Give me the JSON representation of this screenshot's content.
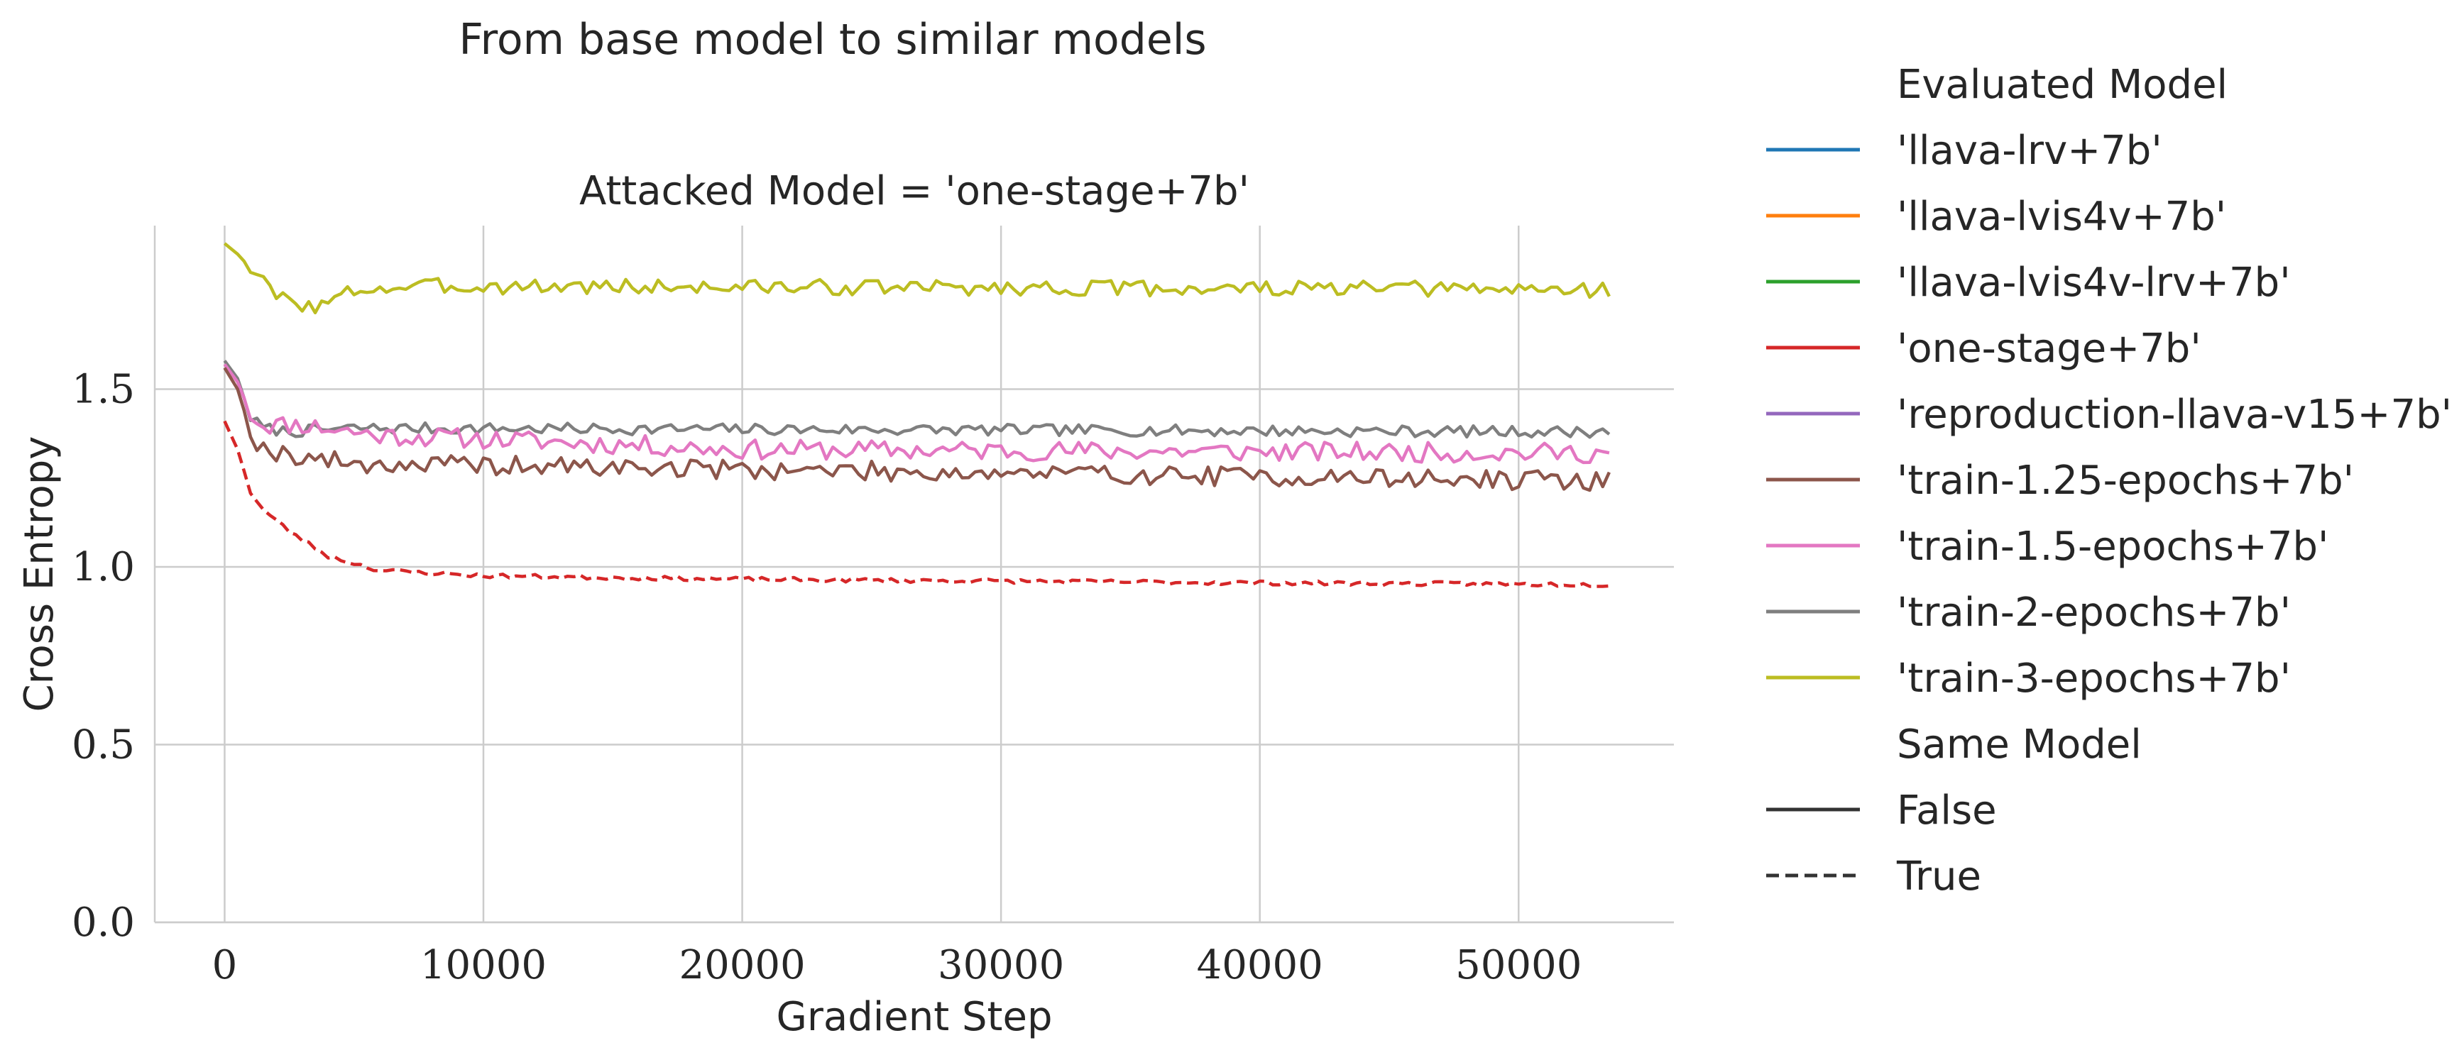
{
  "chart_data": {
    "type": "line",
    "suptitle": "From base model to similar models",
    "title": "Attacked Model = 'one-stage+7b'",
    "xlabel": "Gradient Step",
    "ylabel": "Cross Entropy",
    "xlim": [
      -2700,
      56000
    ],
    "ylim": [
      0,
      1.96
    ],
    "xticks": [
      0,
      10000,
      20000,
      30000,
      40000,
      50000
    ],
    "xtick_labels": [
      "0",
      "10000",
      "20000",
      "30000",
      "40000",
      "50000"
    ],
    "yticks": [
      0.0,
      0.5,
      1.0,
      1.5
    ],
    "ytick_labels": [
      "0.0",
      "0.5",
      "1.0",
      "1.5"
    ],
    "grid": true,
    "legend": {
      "placement": "right-outside",
      "hue_title": "Evaluated Model",
      "style_title": "Same Model",
      "hue_entries": [
        {
          "label": "'llava-lrv+7b'",
          "color": "#1f77b4"
        },
        {
          "label": "'llava-lvis4v+7b'",
          "color": "#ff7f0e"
        },
        {
          "label": "'llava-lvis4v-lrv+7b'",
          "color": "#2ca02c"
        },
        {
          "label": "'one-stage+7b'",
          "color": "#d62728"
        },
        {
          "label": "'reproduction-llava-v15+7b'",
          "color": "#9467bd"
        },
        {
          "label": "'train-1.25-epochs+7b'",
          "color": "#8c564b"
        },
        {
          "label": "'train-1.5-epochs+7b'",
          "color": "#e377c2"
        },
        {
          "label": "'train-2-epochs+7b'",
          "color": "#7f7f7f"
        },
        {
          "label": "'train-3-epochs+7b'",
          "color": "#bcbd22"
        }
      ],
      "style_entries": [
        {
          "label": "False",
          "dash": "solid"
        },
        {
          "label": "True",
          "dash": "dashed"
        }
      ]
    },
    "x_range": {
      "start": 0,
      "end": 53600,
      "step": 250
    },
    "series": [
      {
        "color": "#bcbd22",
        "same_model": false,
        "profile": [
          [
            0,
            1.91
          ],
          [
            500,
            1.88
          ],
          [
            1500,
            1.8
          ],
          [
            2000,
            1.76
          ],
          [
            2500,
            1.75
          ],
          [
            3500,
            1.73
          ],
          [
            4000,
            1.74
          ],
          [
            5000,
            1.78
          ],
          [
            8000,
            1.79
          ],
          [
            53600,
            1.78
          ]
        ],
        "noise": 0.022,
        "seed": 3
      },
      {
        "color": "#7f7f7f",
        "same_model": false,
        "profile": [
          [
            0,
            1.58
          ],
          [
            500,
            1.53
          ],
          [
            1000,
            1.42
          ],
          [
            1500,
            1.39
          ],
          [
            2500,
            1.38
          ],
          [
            5000,
            1.39
          ],
          [
            53600,
            1.38
          ]
        ],
        "noise": 0.016,
        "seed": 7
      },
      {
        "color": "#e377c2",
        "same_model": false,
        "profile": [
          [
            0,
            1.57
          ],
          [
            500,
            1.52
          ],
          [
            1000,
            1.43
          ],
          [
            1500,
            1.4
          ],
          [
            3000,
            1.4
          ],
          [
            6000,
            1.37
          ],
          [
            10000,
            1.36
          ],
          [
            20000,
            1.33
          ],
          [
            53600,
            1.32
          ]
        ],
        "noise": 0.028,
        "seed": 11
      },
      {
        "color": "#8c564b",
        "same_model": false,
        "profile": [
          [
            0,
            1.56
          ],
          [
            500,
            1.5
          ],
          [
            1000,
            1.38
          ],
          [
            1500,
            1.33
          ],
          [
            3000,
            1.31
          ],
          [
            5000,
            1.29
          ],
          [
            53600,
            1.24
          ]
        ],
        "noise": 0.028,
        "seed": 19
      },
      {
        "color": "#d62728",
        "same_model": true,
        "profile": [
          [
            0,
            1.41
          ],
          [
            500,
            1.33
          ],
          [
            1000,
            1.21
          ],
          [
            1500,
            1.16
          ],
          [
            2500,
            1.1
          ],
          [
            4000,
            1.03
          ],
          [
            6000,
            0.99
          ],
          [
            10000,
            0.975
          ],
          [
            20000,
            0.965
          ],
          [
            40000,
            0.955
          ],
          [
            53600,
            0.95
          ]
        ],
        "noise": 0.006,
        "seed": 23
      }
    ]
  }
}
